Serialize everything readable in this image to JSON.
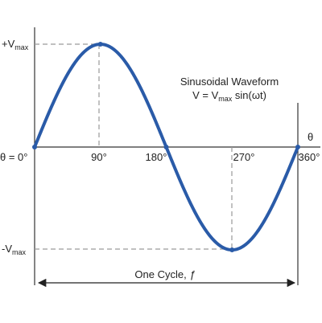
{
  "chart_data": {
    "type": "line",
    "title_line1": "Sinusoidal Waveform",
    "title_line2_prefix": "V = V",
    "title_line2_sub": "max",
    "title_line2_suffix": " sin(ωt)",
    "xlabel": "θ",
    "origin_label": "θ = 0°",
    "xticks": [
      "90°",
      "180°",
      "270°",
      "360°"
    ],
    "vmax_plus_main": "+V",
    "vmax_minus_main": "-V",
    "vmax_sub": "max",
    "cycle_label_prefix": "One Cycle, ",
    "cycle_label_f": "ƒ",
    "x_range_deg": [
      0,
      360
    ],
    "y_range": [
      -1,
      1
    ],
    "function": "sin",
    "points": [
      {
        "x": 0,
        "y": 0
      },
      {
        "x": 90,
        "y": 1
      },
      {
        "x": 180,
        "y": 0
      },
      {
        "x": 270,
        "y": -1
      },
      {
        "x": 360,
        "y": 0
      }
    ],
    "line_color": "#2a5ba8"
  }
}
